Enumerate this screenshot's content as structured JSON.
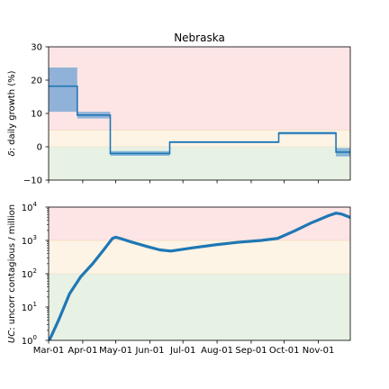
{
  "title": "Nebraska",
  "colors": {
    "line": "#1f77b4",
    "band": "#4a90cf",
    "zone_red": "#fde5e6",
    "zone_yellow": "#fdf4e6",
    "zone_green": "#e7f1e4"
  },
  "chart_data": [
    {
      "type": "step",
      "title": "Nebraska",
      "ylabel": "δ: daily growth (%)",
      "ylabel_prefix": "δ",
      "ylabel_rest": ": daily growth (%)",
      "xlim": [
        "2020-03-01",
        "2020-11-30"
      ],
      "ylim": [
        -10,
        30
      ],
      "yticks": [
        -10,
        0,
        10,
        20,
        30
      ],
      "ytick_labels": [
        "−10",
        "0",
        "10",
        "20",
        "30"
      ],
      "zones": [
        {
          "from": 5,
          "to": 30,
          "color": "zone_red"
        },
        {
          "from": 0,
          "to": 5,
          "color": "zone_yellow"
        },
        {
          "from": -10,
          "to": 0,
          "color": "zone_green"
        }
      ],
      "segments": [
        {
          "start": "2020-03-01",
          "end": "2020-03-27",
          "value": 18.2,
          "low": 10.5,
          "high": 23.8
        },
        {
          "start": "2020-03-27",
          "end": "2020-04-26",
          "value": 9.5,
          "low": 8.5,
          "high": 10.5
        },
        {
          "start": "2020-04-26",
          "end": "2020-06-19",
          "value": -2.0,
          "low": -2.7,
          "high": -1.3
        },
        {
          "start": "2020-06-19",
          "end": "2020-09-26",
          "value": 1.4,
          "low": 1.1,
          "high": 1.7
        },
        {
          "start": "2020-09-26",
          "end": "2020-11-17",
          "value": 4.1,
          "low": 3.7,
          "high": 4.5
        },
        {
          "start": "2020-11-17",
          "end": "2020-11-30",
          "value": -1.6,
          "low": -2.9,
          "high": -0.4
        }
      ]
    },
    {
      "type": "line",
      "ylabel": "UC: uncorr contagious / million",
      "ylabel_prefix": "UC",
      "ylabel_rest": ": uncorr contagious / million",
      "yscale": "log",
      "xlim": [
        "2020-03-01",
        "2020-11-30"
      ],
      "ylim": [
        1,
        10000
      ],
      "yticks": [
        1,
        10,
        100,
        1000,
        10000
      ],
      "ytick_labels": [
        [
          "10",
          "0"
        ],
        [
          "10",
          "1"
        ],
        [
          "10",
          "2"
        ],
        [
          "10",
          "3"
        ],
        [
          "10",
          "4"
        ]
      ],
      "zones": [
        {
          "from": 1000,
          "to": 10000,
          "color": "zone_red"
        },
        {
          "from": 100,
          "to": 1000,
          "color": "zone_yellow"
        },
        {
          "from": 1,
          "to": 100,
          "color": "zone_green"
        }
      ],
      "series": [
        {
          "x": [
            "2020-03-01",
            "2020-03-10",
            "2020-03-20",
            "2020-03-30",
            "2020-04-10",
            "2020-04-20",
            "2020-04-28",
            "2020-05-01",
            "2020-05-05",
            "2020-05-15",
            "2020-05-30",
            "2020-06-10",
            "2020-06-20",
            "2020-07-10",
            "2020-08-01",
            "2020-08-20",
            "2020-09-10",
            "2020-09-25",
            "2020-10-10",
            "2020-10-25",
            "2020-11-10",
            "2020-11-17",
            "2020-11-22",
            "2020-11-30"
          ],
          "y": [
            0.9,
            4,
            25,
            80,
            200,
            520,
            1150,
            1250,
            1150,
            900,
            650,
            520,
            480,
            600,
            750,
            880,
            1000,
            1150,
            1900,
            3300,
            5500,
            6600,
            6200,
            4900
          ]
        }
      ]
    }
  ],
  "xtick_labels": [
    "Mar-01",
    "Apr-01",
    "May-01",
    "Jun-01",
    "Jul-01",
    "Aug-01",
    "Sep-01",
    "Oct-01",
    "Nov-01"
  ],
  "xtick_dates": [
    "2020-03-01",
    "2020-04-01",
    "2020-05-01",
    "2020-06-01",
    "2020-07-01",
    "2020-08-01",
    "2020-09-01",
    "2020-10-01",
    "2020-11-01"
  ]
}
